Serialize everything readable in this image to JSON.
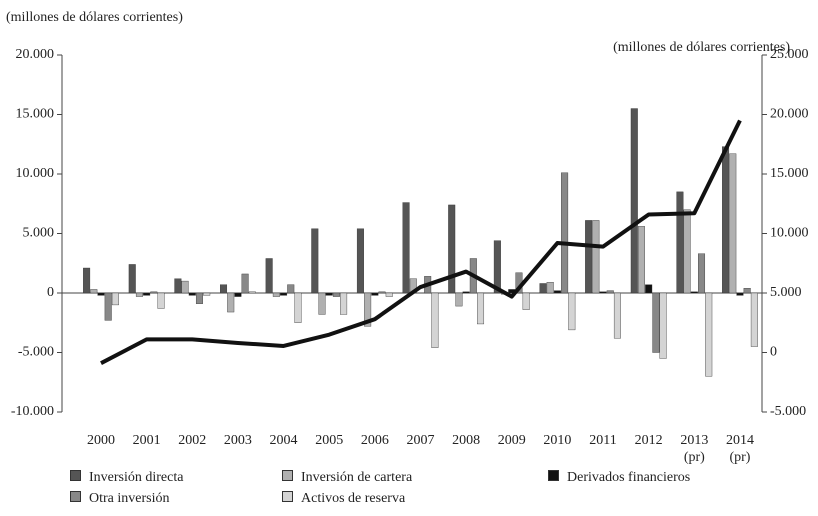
{
  "chart_data": {
    "type": "bar",
    "y_label": "(millones de dólares corrientes)",
    "y2_label": "(millones de dólares corrientes)",
    "categories": [
      "2000",
      "2001",
      "2002",
      "2003",
      "2004",
      "2005",
      "2006",
      "2007",
      "2008",
      "2009",
      "2010",
      "2011",
      "2012",
      "2013 (pr)",
      "2014 (pr)"
    ],
    "series": [
      {
        "name": "Inversión directa",
        "color": "#555555",
        "values": [
          2100,
          2400,
          1200,
          700,
          2900,
          5400,
          5400,
          7600,
          7400,
          4400,
          800,
          6100,
          15500,
          8500,
          12300
        ]
      },
      {
        "name": "Inversión de cartera",
        "color": "#b0b0b0",
        "values": [
          300,
          -300,
          1000,
          -1600,
          -300,
          -1800,
          -2800,
          1200,
          -1100,
          -100,
          900,
          6100,
          5600,
          7000,
          11700
        ]
      },
      {
        "name": "Derivados financieros",
        "color": "#111111",
        "values": [
          -200,
          -200,
          -200,
          -300,
          -200,
          -200,
          -200,
          0,
          100,
          300,
          200,
          100,
          700,
          100,
          -200
        ]
      },
      {
        "name": "Otra inversión",
        "color": "#888888",
        "values": [
          -2300,
          100,
          -900,
          1600,
          700,
          -300,
          100,
          1400,
          2900,
          1700,
          10100,
          200,
          -5000,
          3300,
          400
        ]
      },
      {
        "name": "Activos de reserva",
        "color": "#d4d4d4",
        "values": [
          -1000,
          -1300,
          -200,
          100,
          -2500,
          -1800,
          -300,
          -4600,
          -2600,
          -1400,
          -3100,
          -3800,
          -5500,
          -7000,
          -4500
        ]
      }
    ],
    "line": {
      "color": "#111111",
      "axis": "y2",
      "values": [
        -900,
        1100,
        1100,
        800,
        550,
        1500,
        2800,
        5500,
        6800,
        4700,
        9200,
        8900,
        11600,
        11700,
        19500
      ]
    },
    "ylim": [
      -10000,
      20000
    ],
    "yticks": [
      {
        "value": -10000,
        "label": "-10.000"
      },
      {
        "value": -5000,
        "label": "-5.000"
      },
      0,
      {
        "value": 5000,
        "label": "5.000"
      },
      {
        "value": 10000,
        "label": "10.000"
      },
      {
        "value": 15000,
        "label": "15.000"
      },
      {
        "value": 20000,
        "label": "20.000"
      }
    ],
    "y2lim": [
      -5000,
      25000
    ],
    "y2ticks": [
      {
        "value": -5000,
        "label": "-5.000"
      },
      0,
      {
        "value": 5000,
        "label": "5.000"
      },
      {
        "value": 10000,
        "label": "10.000"
      },
      {
        "value": 15000,
        "label": "15.000"
      },
      {
        "value": 20000,
        "label": "20.000"
      },
      {
        "value": 25000,
        "label": "25.000"
      }
    ]
  }
}
